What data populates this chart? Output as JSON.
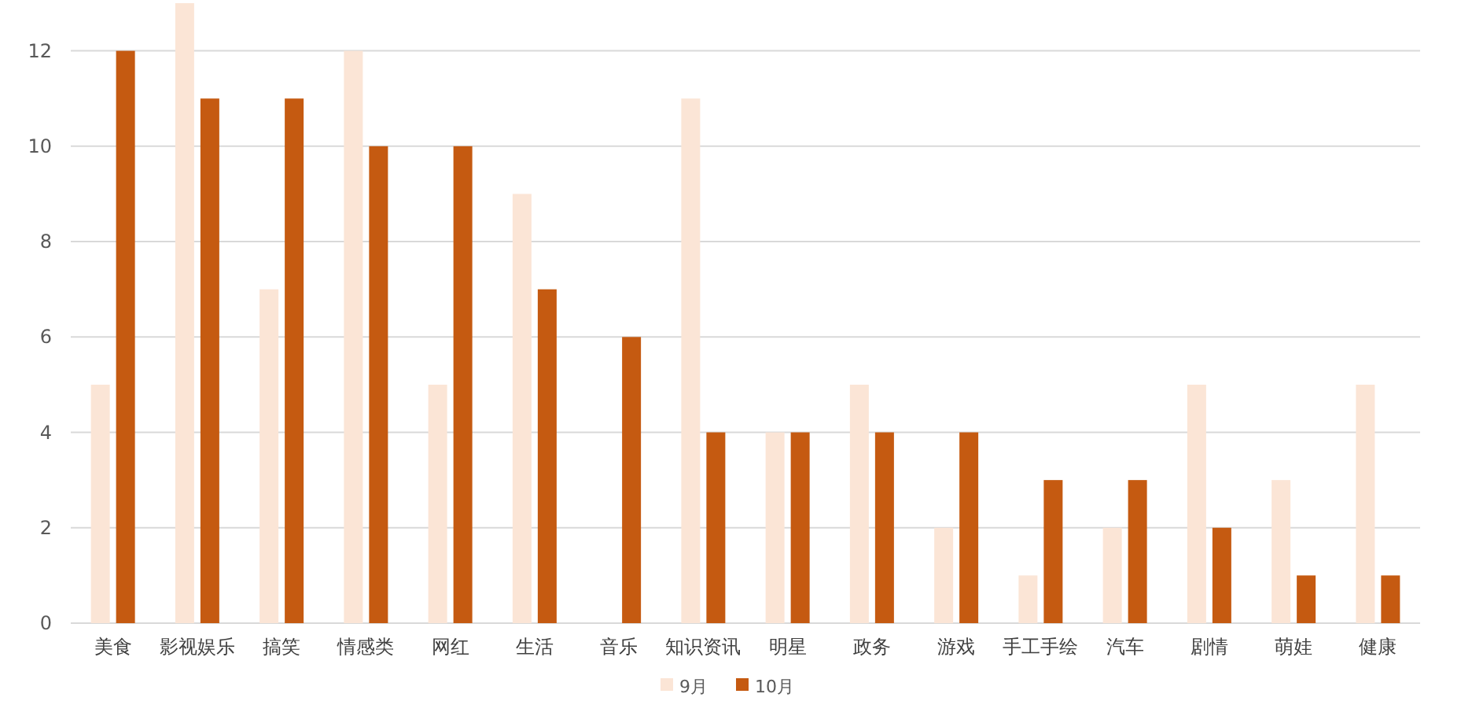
{
  "chart_data": {
    "type": "bar",
    "categories": [
      "美食",
      "影视娱乐",
      "搞笑",
      "情感类",
      "网红",
      "生活",
      "音乐",
      "知识资讯",
      "明星",
      "政务",
      "游戏",
      "手工手绘",
      "汽车",
      "剧情",
      "萌娃",
      "健康"
    ],
    "series": [
      {
        "name": "9月",
        "color": "#fbe5d6",
        "values": [
          5,
          13,
          7,
          12,
          5,
          9,
          0,
          11,
          4,
          5,
          2,
          1,
          2,
          5,
          3,
          5
        ]
      },
      {
        "name": "10月",
        "color": "#c55a11",
        "values": [
          12,
          11,
          11,
          10,
          10,
          7,
          6,
          4,
          4,
          4,
          4,
          3,
          3,
          2,
          1,
          1
        ]
      }
    ],
    "ylim": [
      0,
      13
    ],
    "yticks": [
      0,
      2,
      4,
      6,
      8,
      10,
      12
    ],
    "grid": "y",
    "legend": "bottom"
  }
}
